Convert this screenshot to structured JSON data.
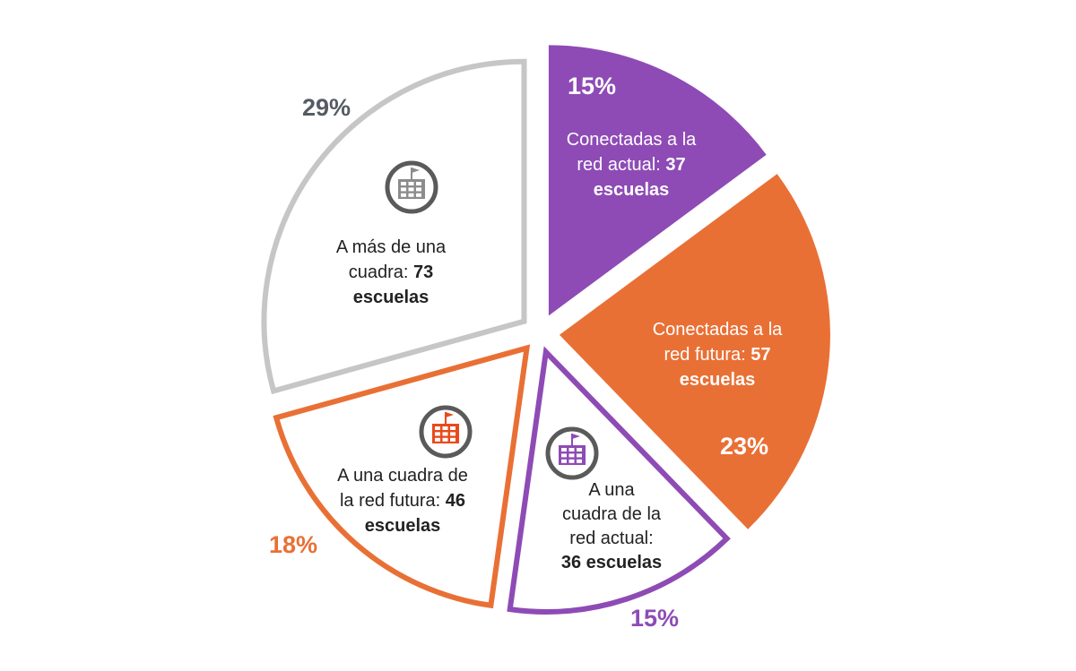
{
  "chart_data": {
    "type": "pie",
    "slices": [
      {
        "percent_label": "15%",
        "value": 37,
        "label_lines": [
          {
            "text": "Conectadas a la",
            "bold": ""
          },
          {
            "text": "red actual: ",
            "bold": "37"
          },
          {
            "text": "",
            "bold": "escuelas"
          }
        ],
        "color": "#8e4bb5",
        "style": "filled",
        "icon": ""
      },
      {
        "percent_label": "23%",
        "value": 57,
        "label_lines": [
          {
            "text": "Conectadas a la",
            "bold": ""
          },
          {
            "text": "red futura: ",
            "bold": "57"
          },
          {
            "text": "",
            "bold": "escuelas"
          }
        ],
        "color": "#e97035",
        "style": "filled",
        "icon": ""
      },
      {
        "percent_label": "15%",
        "value": 36,
        "label_lines": [
          {
            "text": "A una",
            "bold": ""
          },
          {
            "text": "cuadra de la",
            "bold": ""
          },
          {
            "text": "red actual:",
            "bold": ""
          },
          {
            "text": "",
            "bold": "36 escuelas"
          }
        ],
        "color": "#8e4bb5",
        "style": "outline",
        "icon": "school-building-icon"
      },
      {
        "percent_label": "18%",
        "value": 46,
        "label_lines": [
          {
            "text": "A una cuadra de",
            "bold": ""
          },
          {
            "text": "la red futura: ",
            "bold": "46"
          },
          {
            "text": "",
            "bold": "escuelas"
          }
        ],
        "color": "#e97035",
        "style": "outline",
        "icon": "school-building-icon"
      },
      {
        "percent_label": "29%",
        "value": 73,
        "label_lines": [
          {
            "text": "A más de una",
            "bold": ""
          },
          {
            "text": "cuadra: ",
            "bold": "73"
          },
          {
            "text": "",
            "bold": "escuelas"
          }
        ],
        "color": "#c6c6c6",
        "style": "outline",
        "icon": "school-building-icon"
      }
    ],
    "colors": {
      "dark_text": "#222222",
      "icon_ring": "#5a5a5a",
      "outline_pct_gray": "#555b63",
      "icon_orange": "#e84a1b",
      "icon_purple": "#8e4bb5",
      "icon_gray": "#8c8c8c"
    }
  }
}
